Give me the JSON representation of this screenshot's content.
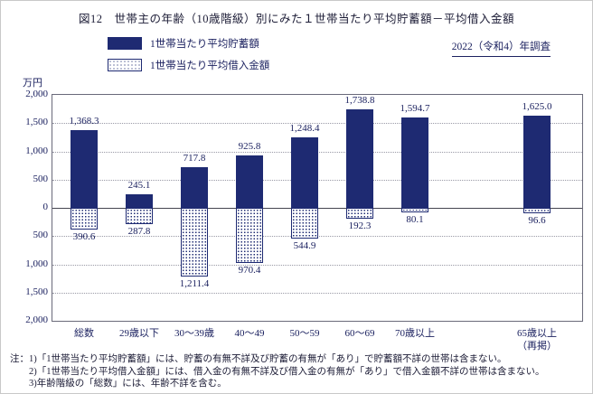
{
  "title": "図12　世帯主の年齢（10歳階級）別にみた１世帯当たり平均貯蓄額－平均借入金額",
  "survey_label": "2022（令和4）年調査",
  "unit_label": "万円",
  "legend": {
    "savings_label": "1世帯当たり平均貯蓄額",
    "borrowing_label": "1世帯当たり平均借入金額"
  },
  "colors": {
    "navy": "#1e2a72",
    "ink": "#1c2260",
    "grid": "#9a9aa6",
    "axis": "#6a6a7a"
  },
  "chart_data": {
    "type": "bar",
    "title": "図12　世帯主の年齢（10歳階級）別にみた１世帯当たり平均貯蓄額－平均借入金額",
    "categories": [
      "総数",
      "29歳以下",
      "30〜39歳",
      "40〜49",
      "50〜59",
      "60〜69",
      "70歳以上",
      "65歳以上\n（再掲）"
    ],
    "series": [
      {
        "name": "1世帯当たり平均貯蓄額",
        "direction": "up",
        "values": [
          1368.3,
          245.1,
          717.8,
          925.8,
          1248.4,
          1738.8,
          1594.7,
          1625.0
        ]
      },
      {
        "name": "1世帯当たり平均借入金額",
        "direction": "down",
        "values": [
          390.6,
          287.8,
          1211.4,
          970.4,
          544.9,
          192.3,
          80.1,
          96.6
        ]
      }
    ],
    "xlabel": "",
    "ylabel": "万円",
    "ylim": [
      -2000,
      2000
    ],
    "ytick_values": [
      2000,
      1500,
      1000,
      500,
      0,
      -500,
      -1000,
      -1500,
      -2000
    ],
    "ytick_labels": [
      "2,000",
      "1,500",
      "1,000",
      "500",
      "0",
      "500",
      "1,000",
      "1,500",
      "2,000"
    ],
    "grid": true,
    "legend_position": "top-left",
    "survey_year": "2022（令和4）年調査"
  },
  "notes": [
    "注：1)「1世帯当たり平均貯蓄額」には、貯蓄の有無不詳及び貯蓄の有無が「あり」で貯蓄額不詳の世帯は含まない。",
    "2)「1世帯当たり平均借入金額」には、借入金の有無不詳及び借入金の有無が「あり」で借入金額不詳の世帯は含まない。",
    "3)年齢階級の「総数」には、年齢不詳を含む。"
  ]
}
